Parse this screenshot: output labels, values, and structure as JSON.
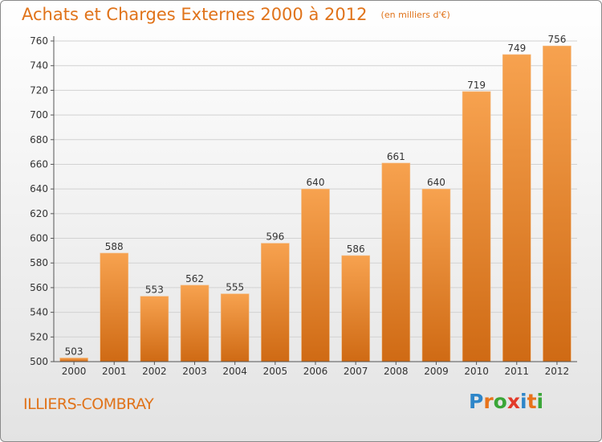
{
  "title": "Achats et Charges Externes 2000 à 2012",
  "unit": "(en milliers d'€)",
  "commune": "ILLIERS-COMBRAY",
  "logo": {
    "letters": [
      "P",
      "r",
      "o",
      "x",
      "i",
      "t",
      "i"
    ],
    "colors": [
      "#2e86c9",
      "#e8731a",
      "#3aa637",
      "#e23a2a",
      "#2e86c9",
      "#e8731a",
      "#3aa637"
    ]
  },
  "colors": {
    "accent": "#e0731a",
    "bar_top": "#f7a24f",
    "bar_bottom": "#cf6a14",
    "grid": "#d2d2d2",
    "axis": "#555555"
  },
  "chart_data": {
    "type": "bar",
    "categories": [
      "2000",
      "2001",
      "2002",
      "2003",
      "2004",
      "2005",
      "2006",
      "2007",
      "2008",
      "2009",
      "2010",
      "2011",
      "2012"
    ],
    "values": [
      503,
      588,
      553,
      562,
      555,
      596,
      640,
      586,
      661,
      640,
      719,
      749,
      756
    ],
    "ylim": [
      500,
      760
    ],
    "yticks": [
      500,
      520,
      540,
      560,
      580,
      600,
      620,
      640,
      660,
      680,
      700,
      720,
      740,
      760
    ],
    "grid": true,
    "legend": "none"
  }
}
